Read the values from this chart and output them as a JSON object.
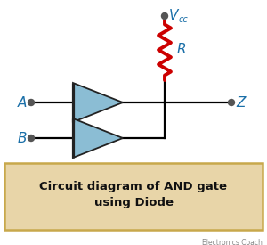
{
  "bg_color": "#ffffff",
  "caption_bg": "#e8d5a8",
  "caption_text": "Circuit diagram of AND gate\nusing Diode",
  "label_A": "A",
  "label_B": "B",
  "label_Z": "Z",
  "label_Vcc": "V",
  "label_cc": "cc",
  "label_R": "R",
  "wire_color": "#000000",
  "diode_fill": "#8bbdd4",
  "diode_edge": "#222222",
  "resistor_color": "#cc0000",
  "node_color": "#555555",
  "label_color": "#1a6fa8",
  "caption_border": "#c8a84b",
  "watermark": "Electronics Coach",
  "wire_lw": 1.6,
  "node_r": 3.5,
  "figw": 3.0,
  "figh": 2.75,
  "dpi": 100
}
